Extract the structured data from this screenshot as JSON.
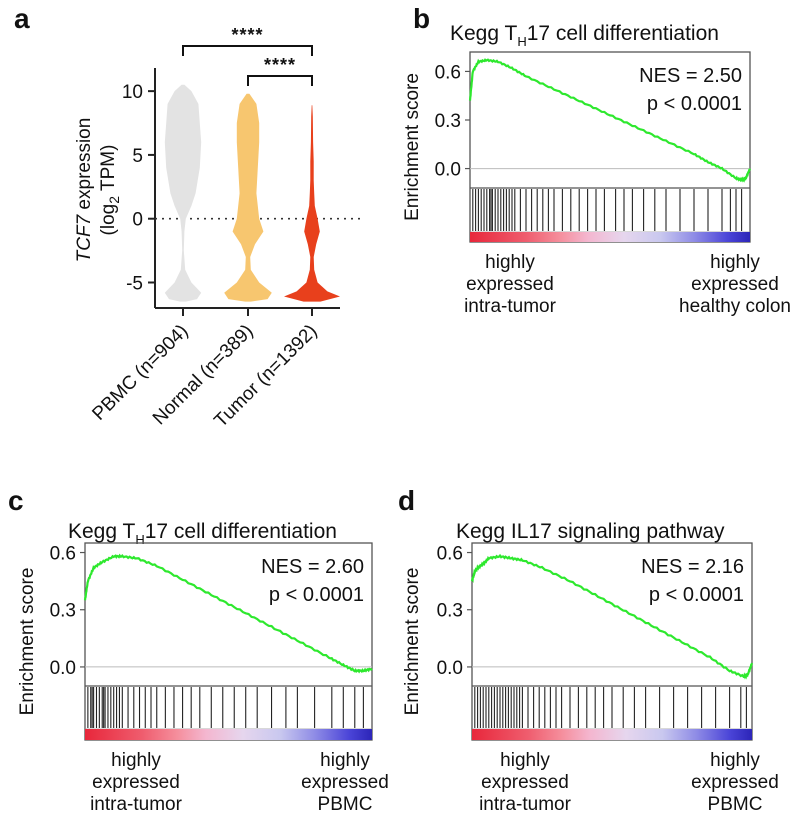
{
  "chart_data": [
    {
      "id": "a",
      "panel_label": "a",
      "type": "violin",
      "ylabel_parts": {
        "gene": "TCF7",
        "rest": " expression",
        "line2_pre": "(log",
        "line2_sub": "2",
        "line2_post": " TPM)"
      },
      "yticks": [
        10,
        5,
        0,
        -5
      ],
      "ylim": [
        -7,
        11.5
      ],
      "reference_line_y": 0,
      "categories": [
        "PBMC (n=904)",
        "Normal (n=389)",
        "Tumor (n=1392)"
      ],
      "colors": [
        "#e3e3e3",
        "#f7c66f",
        "#e8401c"
      ],
      "violins": [
        [
          [
            10.5,
            0.05
          ],
          [
            10,
            0.3
          ],
          [
            9,
            0.55
          ],
          [
            7.5,
            0.6
          ],
          [
            6,
            0.65
          ],
          [
            4,
            0.6
          ],
          [
            2,
            0.45
          ],
          [
            1,
            0.3
          ],
          [
            0,
            0.1
          ],
          [
            -1,
            0.05
          ],
          [
            -2.5,
            0.03
          ],
          [
            -4,
            0.08
          ],
          [
            -5,
            0.3
          ],
          [
            -5.8,
            0.65
          ],
          [
            -6.3,
            0.5
          ],
          [
            -6.5,
            0.1
          ]
        ],
        [
          [
            9.8,
            0.05
          ],
          [
            9,
            0.3
          ],
          [
            7.5,
            0.4
          ],
          [
            6,
            0.4
          ],
          [
            4,
            0.35
          ],
          [
            2,
            0.3
          ],
          [
            0,
            0.4
          ],
          [
            -1,
            0.55
          ],
          [
            -2,
            0.25
          ],
          [
            -3,
            0.08
          ],
          [
            -4,
            0.1
          ],
          [
            -5,
            0.4
          ],
          [
            -5.8,
            0.85
          ],
          [
            -6.3,
            0.7
          ],
          [
            -6.5,
            0.1
          ]
        ],
        [
          [
            8.9,
            0.01
          ],
          [
            8,
            0.03
          ],
          [
            6,
            0.04
          ],
          [
            4.5,
            0.06
          ],
          [
            3,
            0.06
          ],
          [
            2,
            0.08
          ],
          [
            1,
            0.1
          ],
          [
            0,
            0.2
          ],
          [
            -1,
            0.28
          ],
          [
            -2,
            0.15
          ],
          [
            -3,
            0.06
          ],
          [
            -4,
            0.08
          ],
          [
            -5,
            0.2
          ],
          [
            -5.7,
            0.55
          ],
          [
            -6.1,
            1.0
          ],
          [
            -6.5,
            0.3
          ]
        ]
      ],
      "comparisons": [
        {
          "from": 0,
          "to": 2,
          "label": "****"
        },
        {
          "from": 1,
          "to": 2,
          "label": "****"
        }
      ]
    },
    {
      "id": "b",
      "panel_label": "b",
      "type": "line",
      "title_pre": "Kegg T",
      "title_sub": "H",
      "title_post": "17 cell differentiation",
      "ylabel": "Enrichment score",
      "yticks": [
        "0.6",
        "0.3",
        "0.0"
      ],
      "ytick_values": [
        0.6,
        0.3,
        0.0
      ],
      "ylim": [
        -0.12,
        0.72
      ],
      "nes_text": "NES = 2.50",
      "p_text": "p < 0.0001",
      "es_x": [
        0,
        0.01,
        0.03,
        0.06,
        0.1,
        0.15,
        0.2,
        0.3,
        0.4,
        0.5,
        0.6,
        0.7,
        0.8,
        0.85,
        0.9,
        0.95,
        0.97,
        0.985,
        1.0
      ],
      "es_y": [
        0.42,
        0.6,
        0.66,
        0.67,
        0.66,
        0.62,
        0.57,
        0.49,
        0.41,
        0.33,
        0.25,
        0.17,
        0.09,
        0.04,
        0.0,
        -0.06,
        -0.07,
        -0.06,
        0.0
      ],
      "hits": [
        0.01,
        0.02,
        0.03,
        0.04,
        0.05,
        0.06,
        0.07,
        0.075,
        0.08,
        0.09,
        0.1,
        0.11,
        0.12,
        0.13,
        0.14,
        0.15,
        0.16,
        0.18,
        0.2,
        0.22,
        0.24,
        0.26,
        0.28,
        0.3,
        0.33,
        0.36,
        0.39,
        0.42,
        0.45,
        0.48,
        0.52,
        0.55,
        0.58,
        0.62,
        0.66,
        0.7,
        0.75,
        0.8,
        0.85,
        0.9,
        0.93,
        0.95,
        0.97
      ],
      "left_caption": [
        "highly",
        "expressed",
        "intra-tumor"
      ],
      "right_caption": [
        "highly",
        "expressed",
        "healthy colon"
      ]
    },
    {
      "id": "c",
      "panel_label": "c",
      "type": "line",
      "title_pre": "Kegg T",
      "title_sub": "H",
      "title_post": "17 cell differentiation",
      "ylabel": "Enrichment score",
      "yticks": [
        "0.6",
        "0.3",
        "0.0"
      ],
      "ytick_values": [
        0.6,
        0.3,
        0.0
      ],
      "ylim": [
        -0.1,
        0.65
      ],
      "nes_text": "NES = 2.60",
      "p_text": "p < 0.0001",
      "es_x": [
        0,
        0.01,
        0.03,
        0.06,
        0.1,
        0.13,
        0.18,
        0.25,
        0.35,
        0.45,
        0.55,
        0.65,
        0.75,
        0.85,
        0.9,
        0.94,
        0.97,
        1.0
      ],
      "es_y": [
        0.35,
        0.45,
        0.52,
        0.55,
        0.58,
        0.58,
        0.57,
        0.53,
        0.45,
        0.37,
        0.29,
        0.21,
        0.13,
        0.05,
        0.01,
        -0.02,
        -0.02,
        -0.01
      ],
      "hits": [
        0.01,
        0.02,
        0.025,
        0.03,
        0.04,
        0.05,
        0.06,
        0.065,
        0.07,
        0.08,
        0.09,
        0.1,
        0.11,
        0.12,
        0.13,
        0.15,
        0.17,
        0.19,
        0.21,
        0.23,
        0.25,
        0.28,
        0.31,
        0.34,
        0.37,
        0.4,
        0.44,
        0.48,
        0.52,
        0.56,
        0.6,
        0.65,
        0.7,
        0.74,
        0.8,
        0.86,
        0.9,
        0.94,
        0.97
      ],
      "left_caption": [
        "highly",
        "expressed",
        "intra-tumor"
      ],
      "right_caption": [
        "highly",
        "expressed",
        "PBMC"
      ]
    },
    {
      "id": "d",
      "panel_label": "d",
      "type": "line",
      "title": "Kegg IL17 signaling pathway",
      "ylabel": "Enrichment score",
      "yticks": [
        "0.6",
        "0.3",
        "0.0"
      ],
      "ytick_values": [
        0.6,
        0.3,
        0.0
      ],
      "ylim": [
        -0.1,
        0.65
      ],
      "nes_text": "NES = 2.16",
      "p_text": "p < 0.0001",
      "es_x": [
        0,
        0.01,
        0.02,
        0.04,
        0.06,
        0.1,
        0.14,
        0.18,
        0.25,
        0.35,
        0.45,
        0.55,
        0.65,
        0.75,
        0.85,
        0.92,
        0.97,
        0.985,
        1.0
      ],
      "es_y": [
        0.45,
        0.5,
        0.52,
        0.54,
        0.57,
        0.58,
        0.57,
        0.56,
        0.52,
        0.45,
        0.37,
        0.29,
        0.21,
        0.13,
        0.05,
        -0.02,
        -0.05,
        -0.04,
        0.02
      ],
      "hits": [
        0.01,
        0.02,
        0.03,
        0.04,
        0.05,
        0.06,
        0.07,
        0.08,
        0.09,
        0.1,
        0.11,
        0.12,
        0.13,
        0.14,
        0.15,
        0.16,
        0.17,
        0.18,
        0.2,
        0.22,
        0.24,
        0.26,
        0.28,
        0.3,
        0.32,
        0.35,
        0.38,
        0.41,
        0.44,
        0.47,
        0.5,
        0.54,
        0.58,
        0.62,
        0.67,
        0.72,
        0.77,
        0.82,
        0.87,
        0.92,
        0.96,
        0.98
      ],
      "left_caption": [
        "highly",
        "expressed",
        "intra-tumor"
      ],
      "right_caption": [
        "highly",
        "expressed",
        "PBMC"
      ]
    }
  ]
}
